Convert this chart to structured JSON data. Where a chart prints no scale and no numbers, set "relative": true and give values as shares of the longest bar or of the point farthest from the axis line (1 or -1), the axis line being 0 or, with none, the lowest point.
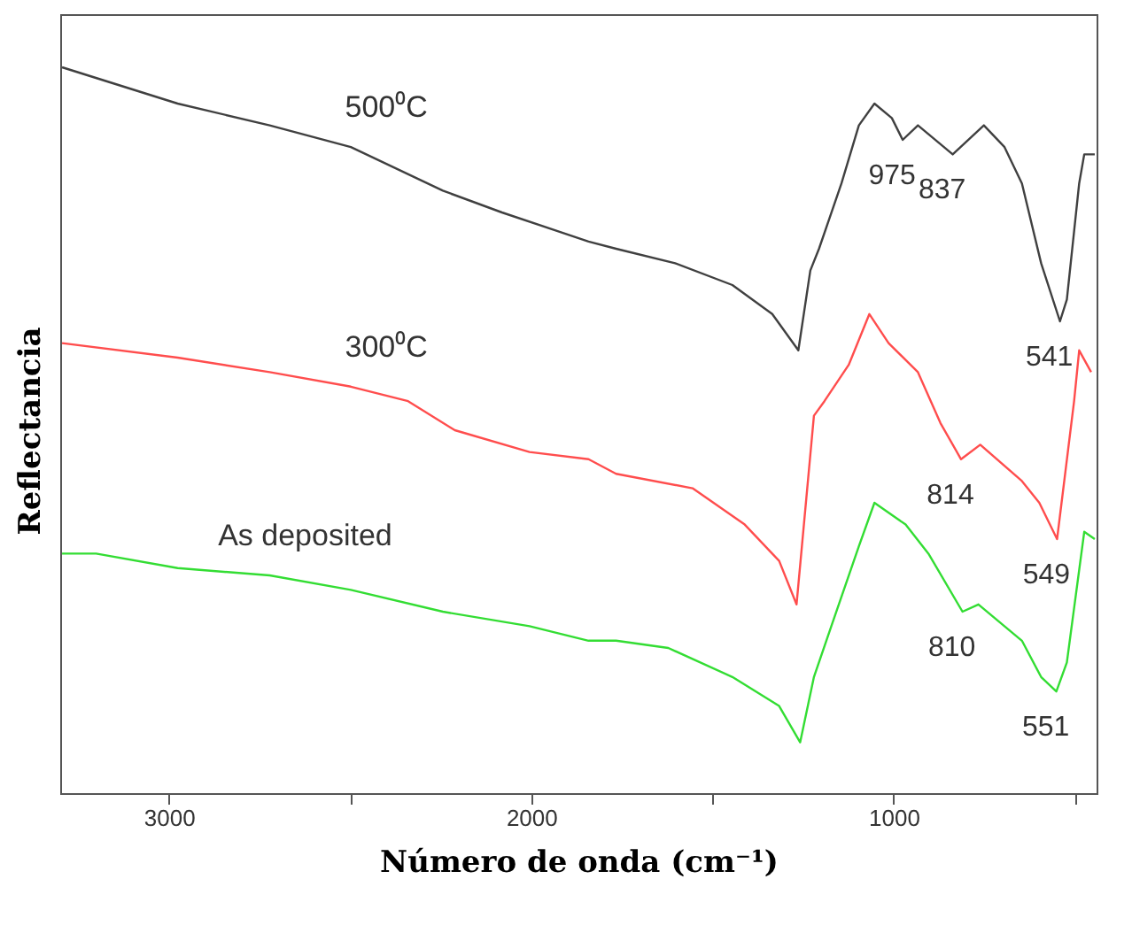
{
  "chart_data": {
    "type": "line",
    "relative": true,
    "xlabel": "Número de onda (cm⁻¹)",
    "ylabel": "Reflectancia",
    "xlim": [
      3300,
      440
    ],
    "xticks": [
      3000,
      {
        "value": 2500,
        "label": null
      },
      2000,
      {
        "value": 1500,
        "label": null
      },
      1000,
      {
        "value": 500,
        "label": null
      }
    ],
    "series": [
      {
        "name": "500⁰C",
        "color": "#404040",
        "x": [
          3295,
          2976,
          2722,
          2498,
          2244,
          2081,
          1842,
          1766,
          1603,
          1445,
          1335,
          1263,
          1230,
          1206,
          1144,
          1096,
          1053,
          1005,
          975,
          933,
          837,
          751,
          694,
          646,
          593,
          541,
          522,
          488,
          474,
          445
        ],
        "values": [
          1.0,
          0.95,
          0.92,
          0.89,
          0.83,
          0.8,
          0.76,
          0.75,
          0.73,
          0.7,
          0.66,
          0.61,
          0.72,
          0.75,
          0.84,
          0.92,
          0.95,
          0.93,
          0.9,
          0.92,
          0.88,
          0.92,
          0.89,
          0.84,
          0.73,
          0.65,
          0.68,
          0.84,
          0.88,
          0.88
        ]
      },
      {
        "name": "300⁰C",
        "color": "#ff4d4d",
        "x": [
          3295,
          2976,
          2722,
          2498,
          2340,
          2211,
          2005,
          1842,
          1766,
          1555,
          1411,
          1316,
          1268,
          1220,
          1191,
          1124,
          1067,
          1014,
          933,
          871,
          814,
          761,
          646,
          598,
          549,
          502,
          488,
          455
        ],
        "values": [
          0.62,
          0.6,
          0.58,
          0.56,
          0.54,
          0.5,
          0.47,
          0.46,
          0.44,
          0.42,
          0.37,
          0.32,
          0.26,
          0.52,
          0.54,
          0.59,
          0.66,
          0.62,
          0.58,
          0.51,
          0.46,
          0.48,
          0.43,
          0.4,
          0.35,
          0.54,
          0.61,
          0.58
        ]
      },
      {
        "name": "As deposited",
        "color": "#33dd33",
        "x": [
          3295,
          3201,
          2976,
          2722,
          2498,
          2244,
          2005,
          1842,
          1766,
          1622,
          1445,
          1316,
          1258,
          1220,
          1172,
          1096,
          1053,
          967,
          904,
          810,
          766,
          646,
          593,
          551,
          522,
          474,
          445
        ],
        "values": [
          0.33,
          0.33,
          0.31,
          0.3,
          0.28,
          0.25,
          0.23,
          0.21,
          0.21,
          0.2,
          0.16,
          0.12,
          0.07,
          0.16,
          0.23,
          0.34,
          0.4,
          0.37,
          0.33,
          0.25,
          0.26,
          0.21,
          0.16,
          0.14,
          0.18,
          0.36,
          0.35
        ]
      }
    ],
    "annotations": [
      {
        "text": "975",
        "x": 975,
        "y": 0.9
      },
      {
        "text": "837",
        "x": 837,
        "y": 0.88
      },
      {
        "text": "541",
        "x": 541,
        "y": 0.65
      },
      {
        "text": "814",
        "x": 814,
        "y": 0.46
      },
      {
        "text": "549",
        "x": 549,
        "y": 0.35
      },
      {
        "text": "810",
        "x": 810,
        "y": 0.25
      },
      {
        "text": "551",
        "x": 551,
        "y": 0.14
      }
    ]
  }
}
